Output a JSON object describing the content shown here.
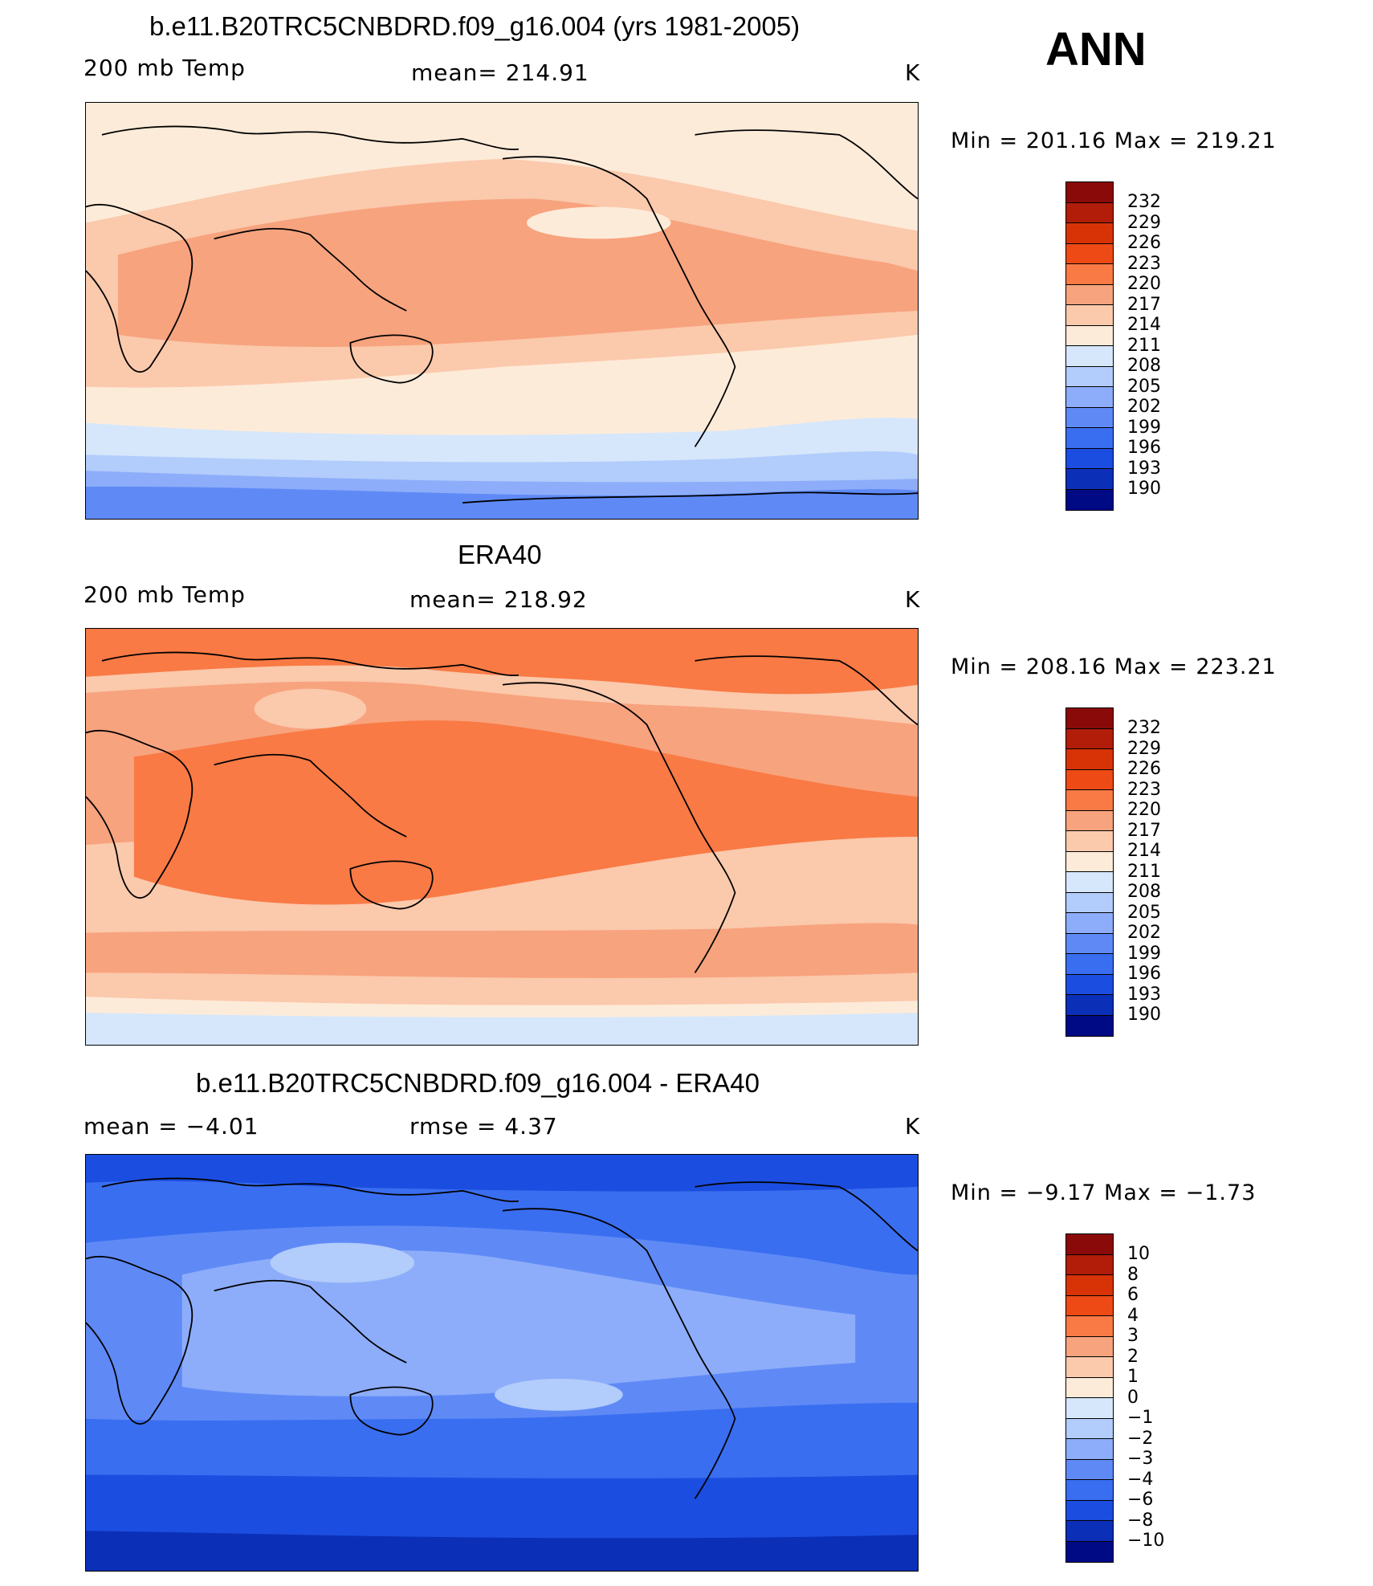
{
  "header": {
    "season": "ANN"
  },
  "panels": [
    {
      "title": "b.e11.B20TRC5CNBDRD.f09_g16.004 (yrs 1981-2005)",
      "variable": "200 mb Temp",
      "mean_label": "mean=  214.91",
      "units": "K",
      "stats": "Min  =  201.16  Max  =  219.21",
      "palette": "abs"
    },
    {
      "title": "ERA40",
      "variable": "200 mb Temp",
      "mean_label": "mean=  218.92",
      "units": "K",
      "stats": "Min  =  208.16  Max  =  223.21",
      "palette": "abs"
    },
    {
      "title": "b.e11.B20TRC5CNBDRD.f09_g16.004 - ERA40",
      "mean_label": "mean  =    −4.01",
      "rmse_label": "rmse  =     4.37",
      "units": "K",
      "stats": "Min  =    −9.17  Max  =    −1.73",
      "palette": "diff"
    }
  ],
  "colorbars": {
    "abs": {
      "labels": [
        "232",
        "229",
        "226",
        "223",
        "220",
        "217",
        "214",
        "211",
        "208",
        "205",
        "202",
        "199",
        "196",
        "193",
        "190"
      ],
      "colors": [
        "#8a0a0a",
        "#b11d08",
        "#d83307",
        "#ee4a16",
        "#f97a45",
        "#f7a37e",
        "#fbc9ac",
        "#fdebd9",
        "#d6e7fb",
        "#b2ccfb",
        "#8dadfa",
        "#5f8af6",
        "#3a6ef0",
        "#1b4ee0",
        "#0c2fb8",
        "#000a85"
      ]
    },
    "diff": {
      "labels": [
        "10",
        "8",
        "6",
        "4",
        "3",
        "2",
        "1",
        "0",
        "−1",
        "−2",
        "−3",
        "−4",
        "−6",
        "−8",
        "−10"
      ],
      "colors": [
        "#8a0a0a",
        "#b11d08",
        "#d83307",
        "#ee4a16",
        "#f97a45",
        "#f7a37e",
        "#fbc9ac",
        "#fdebd9",
        "#d6e7fb",
        "#b2ccfb",
        "#8dadfa",
        "#5f8af6",
        "#3a6ef0",
        "#1b4ee0",
        "#0c2fb8",
        "#000a85"
      ]
    }
  }
}
